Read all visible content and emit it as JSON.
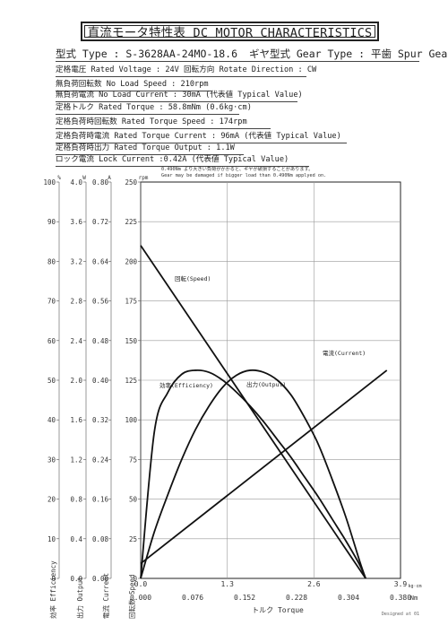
{
  "header": {
    "title": "直流モータ特性表 DC MOTOR CHARACTERISTICS",
    "model_label": "型式 Type : S-3628AA-24MO-18.6",
    "gear_label": "ギヤ型式 Gear Type : 平歯  Spur Gear"
  },
  "specs": [
    "定格電圧 Rated Voltage : 24V    回転方向 Rotate Direction : CW",
    "無負荷回転数 No Load Speed : 210rpm",
    "無負荷電流 No Load Current : 30mA (代表値 Typical Value)",
    "定格トルク Rated Torque : 58.8mNm (0.6kg·cm)",
    "定格負荷時回転数 Rated Torque Speed : 174rpm",
    "定格負荷時電流 Rated Torque Current : 96mA (代表値 Typical Value)",
    "定格負荷時出力 Rated Torque Output : 1.1W",
    "ロック電流 Lock Current :0.42A (代表値 Typical Value)"
  ],
  "warning": [
    "0.490Nm より大きい負荷がかかると、ギヤが破損することがあります。",
    "Gear may be damaged if bigger load than 0.490Nm applyed on."
  ],
  "footer": "Designed at 01",
  "chart_data": {
    "type": "line",
    "axes": {
      "efficiency": {
        "label_jp": "効率",
        "label_en": "Efficiency",
        "unit": "%",
        "range": [
          0,
          100
        ],
        "ticks": [
          "0",
          "10",
          "20",
          "30",
          "40",
          "50",
          "60",
          "70",
          "80",
          "90",
          "100"
        ]
      },
      "output": {
        "label_jp": "出力",
        "label_en": "Output",
        "unit": "W",
        "range": [
          0,
          4.0
        ],
        "ticks": [
          "0.0",
          "0.4",
          "0.8",
          "1.2",
          "1.6",
          "2.0",
          "2.4",
          "2.8",
          "3.2",
          "3.6",
          "4.0"
        ]
      },
      "current": {
        "label_jp": "電流",
        "label_en": "Current",
        "unit": "A",
        "range": [
          0,
          0.8
        ],
        "ticks": [
          "0.00",
          "0.08",
          "0.16",
          "0.24",
          "0.32",
          "0.40",
          "0.48",
          "0.56",
          "0.64",
          "0.72",
          "0.80"
        ]
      },
      "speed": {
        "label_jp": "回転数",
        "label_en": "Speed",
        "unit": "rpm",
        "range": [
          0,
          250
        ],
        "ticks": [
          "0",
          "25",
          "50",
          "75",
          "100",
          "125",
          "150",
          "175",
          "200",
          "225",
          "250"
        ]
      },
      "torque": {
        "label": "トルク Torque",
        "unit_nm": "Nm",
        "unit_kgcm": "kg·cm",
        "range_nm": [
          0,
          0.38
        ],
        "ticks_nm": [
          "0.000",
          "0.076",
          "0.152",
          "0.228",
          "0.304",
          "0.380"
        ],
        "ticks_kgcm": [
          "0.0",
          "1.3",
          "2.6",
          "3.9"
        ]
      }
    },
    "series": [
      {
        "name": "回転(Speed)",
        "axis": "speed",
        "torque_nm": [
          0,
          0.329
        ],
        "values": [
          210,
          0
        ]
      },
      {
        "name": "電流(Current)",
        "axis": "current",
        "torque_nm": [
          0,
          0.36
        ],
        "values": [
          0.03,
          0.42
        ]
      },
      {
        "name": "効率(Efficiency)",
        "axis": "efficiency",
        "torque_nm": [
          0,
          0.02,
          0.04,
          0.06,
          0.08,
          0.1,
          0.12,
          0.14,
          0.16,
          0.18,
          0.2,
          0.22,
          0.24,
          0.26,
          0.28,
          0.3,
          0.32,
          0.329
        ],
        "values": [
          0,
          37,
          47,
          51.5,
          52.5,
          52,
          50,
          47,
          43.5,
          39.5,
          35,
          30.5,
          25.5,
          20.5,
          15,
          9.5,
          3.5,
          0
        ]
      },
      {
        "name": "出力(Output)",
        "axis": "output",
        "torque_nm": [
          0,
          0.02,
          0.04,
          0.06,
          0.08,
          0.1,
          0.12,
          0.14,
          0.16,
          0.18,
          0.2,
          0.22,
          0.24,
          0.26,
          0.28,
          0.3,
          0.32,
          0.329
        ],
        "values": [
          0,
          0.47,
          0.85,
          1.2,
          1.5,
          1.74,
          1.93,
          2.05,
          2.1,
          2.08,
          2.0,
          1.85,
          1.62,
          1.35,
          1.0,
          0.62,
          0.18,
          0
        ]
      }
    ],
    "grid": true
  }
}
